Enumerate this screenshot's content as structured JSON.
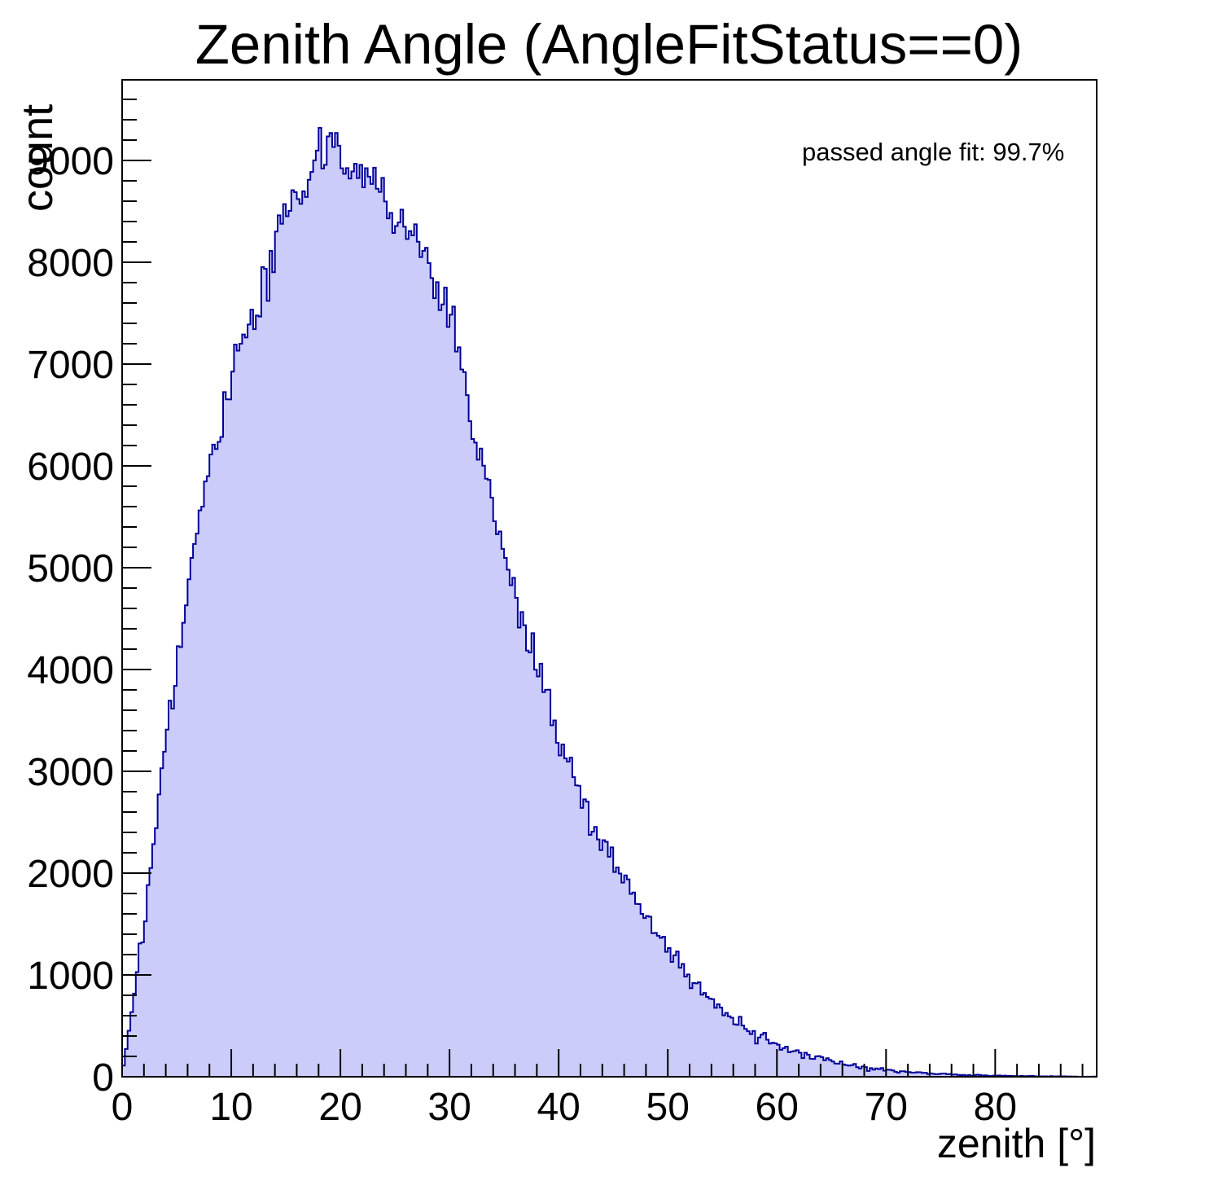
{
  "page": {
    "background": "#ffffff"
  },
  "chart_data": {
    "type": "bar",
    "subtype": "step-histogram-filled",
    "title": "Zenith Angle (AngleFitStatus==0)",
    "xlabel": "zenith [°]",
    "ylabel": "count",
    "annotation": "passed angle fit: 99.7%",
    "xlim": [
      0,
      89.3
    ],
    "ylim": [
      0,
      9792
    ],
    "x_major_ticks": [
      0,
      10,
      20,
      30,
      40,
      50,
      60,
      70,
      80
    ],
    "x_minor_step": 2,
    "y_major_ticks": [
      0,
      1000,
      2000,
      3000,
      4000,
      5000,
      6000,
      7000,
      8000,
      9000
    ],
    "y_minor_step": 200,
    "grid": false,
    "legend": false,
    "bin_width_deg": 0.25,
    "envelope": {
      "x_start_deg": 0,
      "x_step_deg": 1,
      "counts": [
        40,
        700,
        1500,
        2400,
        3300,
        4000,
        4800,
        5450,
        6000,
        6450,
        6900,
        7200,
        7500,
        7800,
        8100,
        8350,
        8600,
        8800,
        8950,
        9050,
        9000,
        8950,
        8900,
        8750,
        8650,
        8550,
        8450,
        8250,
        8000,
        7700,
        7400,
        6900,
        6350,
        6000,
        5650,
        5150,
        4800,
        4350,
        4000,
        3650,
        3300,
        3000,
        2750,
        2500,
        2300,
        2100,
        1950,
        1780,
        1600,
        1430,
        1280,
        1120,
        960,
        840,
        730,
        630,
        545,
        480,
        425,
        375,
        330,
        285,
        245,
        210,
        180,
        152,
        128,
        108,
        92,
        78,
        64,
        54,
        45,
        38,
        32,
        27,
        22,
        18,
        15,
        13,
        11,
        9,
        7,
        6,
        5,
        4,
        3,
        2,
        1,
        1
      ]
    },
    "peak": {
      "x_deg": 18.1,
      "counts": 9320
    },
    "noise": {
      "seed": 13,
      "sigma_scale": 1.5
    },
    "colors": {
      "fill": "#ccccfa",
      "line": "#00009a",
      "frame": "#000000",
      "text": "#000000"
    }
  }
}
